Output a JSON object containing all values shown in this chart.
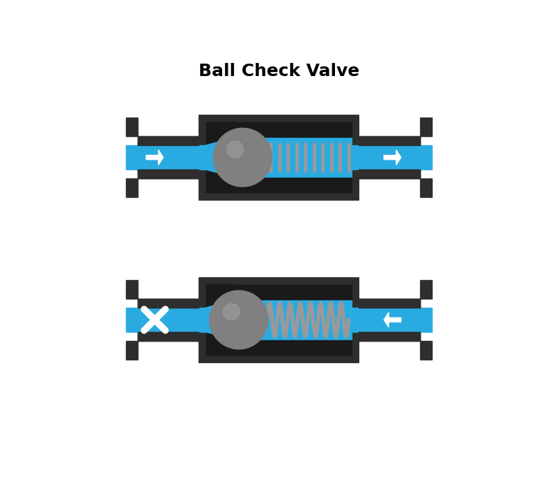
{
  "title": "Ball Check Valve",
  "title_fontsize": 18,
  "title_fontweight": "bold",
  "bg_color": "#ffffff",
  "dark_color": "#2e2e2e",
  "black_color": "#1a1a1a",
  "blue_color": "#29ABE2",
  "gray_ball": "#808080",
  "gray_spring": "#999999",
  "white": "#ffffff",
  "fig_width": 7.86,
  "fig_height": 6.97,
  "dpi": 100
}
